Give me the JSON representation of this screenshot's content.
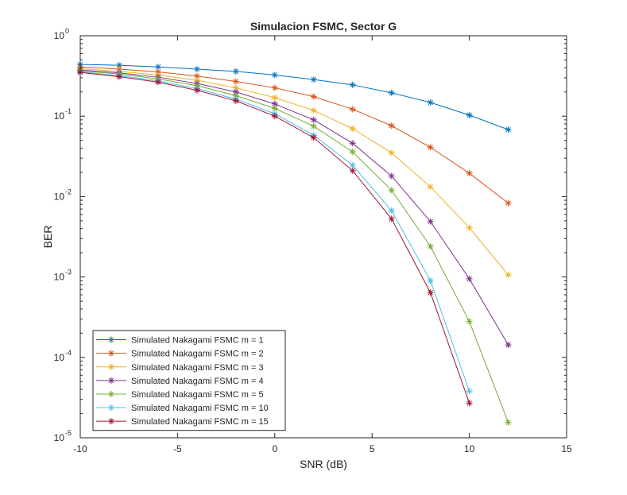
{
  "chart_data": {
    "type": "line",
    "title": "Simulacion FSMC, Sector G",
    "xlabel": "SNR (dB)",
    "ylabel": "BER",
    "xlim": [
      -10,
      15
    ],
    "ylim": [
      1e-05,
      1
    ],
    "yscale": "log",
    "grid": false,
    "legend_location": "bottom-left",
    "x_ticks": [
      -10,
      -5,
      0,
      5,
      10,
      15
    ],
    "x_tick_labels": [
      "-10",
      "-5",
      "0",
      "5",
      "10",
      "15"
    ],
    "y_ticks": [
      {
        "value": 1e-05,
        "base": "10",
        "exp": "-5"
      },
      {
        "value": 0.0001,
        "base": "10",
        "exp": "-4"
      },
      {
        "value": 0.001,
        "base": "10",
        "exp": "-3"
      },
      {
        "value": 0.01,
        "base": "10",
        "exp": "-2"
      },
      {
        "value": 0.1,
        "base": "10",
        "exp": "-1"
      },
      {
        "value": 1,
        "base": "10",
        "exp": "0"
      }
    ],
    "series": [
      {
        "name": "Simulated Nakagami FSMC m = 1",
        "color": "#0072BD",
        "x": [
          -10,
          -8,
          -6,
          -4,
          -2,
          0,
          2,
          4,
          6,
          8,
          10,
          12
        ],
        "y": [
          0.44,
          0.43,
          0.41,
          0.385,
          0.36,
          0.325,
          0.285,
          0.245,
          0.195,
          0.148,
          0.103,
          0.068
        ]
      },
      {
        "name": "Simulated Nakagami FSMC m = 2",
        "color": "#D95319",
        "x": [
          -10,
          -8,
          -6,
          -4,
          -2,
          0,
          2,
          4,
          6,
          8,
          10,
          12
        ],
        "y": [
          0.41,
          0.385,
          0.355,
          0.315,
          0.27,
          0.225,
          0.175,
          0.122,
          0.076,
          0.041,
          0.0195,
          0.0083
        ]
      },
      {
        "name": "Simulated Nakagami FSMC m = 3",
        "color": "#EDB120",
        "x": [
          -10,
          -8,
          -6,
          -4,
          -2,
          0,
          2,
          4,
          6,
          8,
          10,
          12
        ],
        "y": [
          0.39,
          0.36,
          0.325,
          0.28,
          0.225,
          0.17,
          0.118,
          0.07,
          0.035,
          0.0132,
          0.0041,
          0.00106
        ]
      },
      {
        "name": "Simulated Nakagami FSMC m = 4",
        "color": "#7E2F8E",
        "x": [
          -10,
          -8,
          -6,
          -4,
          -2,
          0,
          2,
          4,
          6,
          8,
          10,
          12
        ],
        "y": [
          0.375,
          0.345,
          0.305,
          0.255,
          0.2,
          0.142,
          0.09,
          0.046,
          0.018,
          0.0049,
          0.00095,
          0.000143
        ]
      },
      {
        "name": "Simulated Nakagami FSMC m = 5",
        "color": "#77AC30",
        "x": [
          -10,
          -8,
          -6,
          -4,
          -2,
          0,
          2,
          4,
          6,
          8,
          10,
          12
        ],
        "y": [
          0.365,
          0.335,
          0.29,
          0.24,
          0.18,
          0.125,
          0.075,
          0.036,
          0.012,
          0.0024,
          0.00028,
          1.55e-05
        ]
      },
      {
        "name": "Simulated Nakagami FSMC m = 10",
        "color": "#4DBEEE",
        "x": [
          -10,
          -8,
          -6,
          -4,
          -2,
          0,
          2,
          4,
          6,
          8,
          10
        ],
        "y": [
          0.355,
          0.32,
          0.275,
          0.22,
          0.163,
          0.107,
          0.058,
          0.0245,
          0.0067,
          0.0009,
          3.8e-05
        ]
      },
      {
        "name": "Simulated Nakagami FSMC m = 15",
        "color": "#A2142F",
        "x": [
          -10,
          -8,
          -6,
          -4,
          -2,
          0,
          2,
          4,
          6,
          8,
          10
        ],
        "y": [
          0.35,
          0.31,
          0.265,
          0.21,
          0.155,
          0.1,
          0.054,
          0.021,
          0.0053,
          0.00064,
          2.7e-05
        ]
      }
    ]
  }
}
